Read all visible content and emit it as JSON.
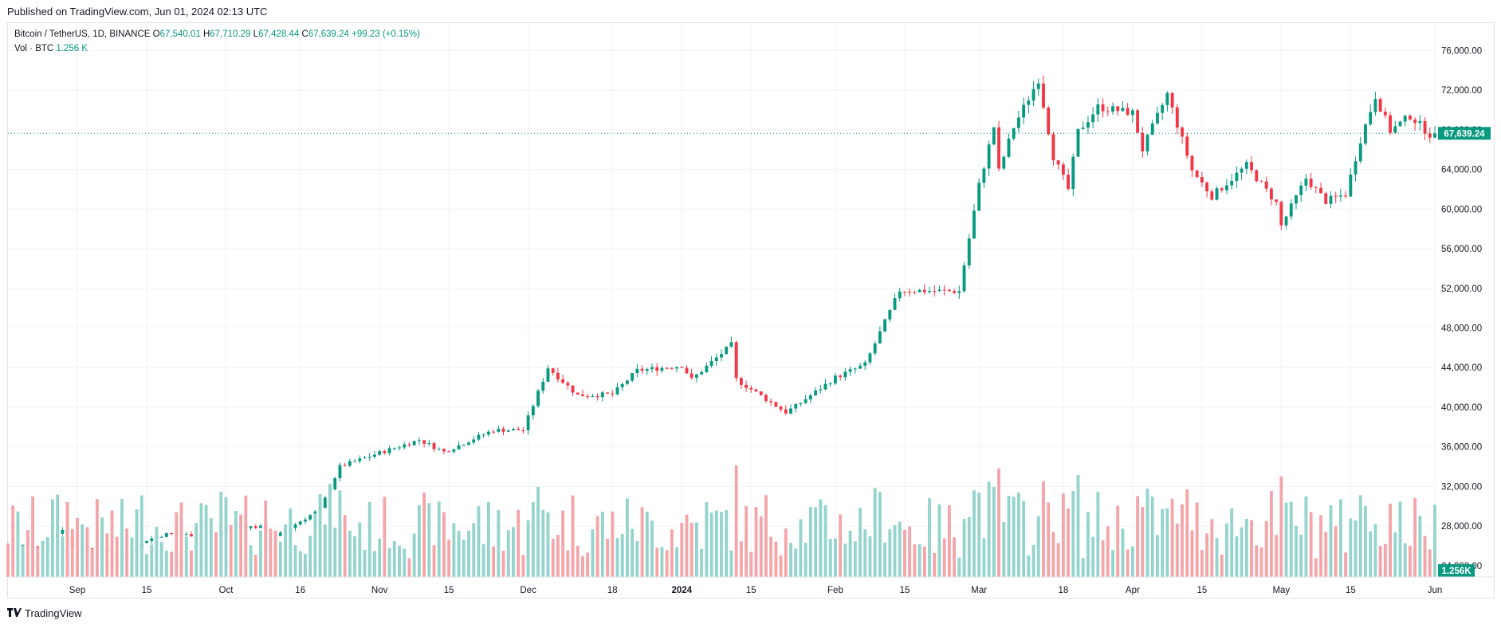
{
  "published": "Published on TradingView.com, Jun 01, 2024 02:13 UTC",
  "legend": {
    "symbol": "Bitcoin / TetherUS, 1D, BINANCE",
    "o_label": "O",
    "o_value": "67,540.01",
    "h_label": "H",
    "h_value": "67,710.29",
    "l_label": "L",
    "l_value": "67,428.44",
    "c_label": "C",
    "c_value": "67,639.24",
    "change": "+99.23 (+0.15%)",
    "vol_label": "Vol · BTC",
    "vol_value": "1.256 K"
  },
  "footer": {
    "brand": "TradingView",
    "logo": "tradingview-logo-icon"
  },
  "colors": {
    "up": "#089981",
    "down": "#f23645",
    "vol_up": "#94d4cd",
    "vol_down": "#f4a5a9",
    "grid": "#f0f3fa",
    "axis_text": "#131722"
  },
  "chart_data": {
    "type": "candlestick",
    "symbol": "Bitcoin / TetherUS",
    "interval": "1D",
    "exchange": "BINANCE",
    "date_range": [
      "2023-08-18",
      "2024-06-01"
    ],
    "ylim": [
      21500,
      78200
    ],
    "y_ticks": [
      76000,
      72000,
      68000,
      64000,
      60000,
      56000,
      52000,
      48000,
      44000,
      40000,
      36000,
      32000,
      28000,
      24000
    ],
    "y_tick_labels": [
      "76,000.00",
      "72,000.00",
      "68,000.00",
      "64,000.00",
      "60,000.00",
      "56,000.00",
      "52,000.00",
      "48,000.00",
      "44,000.00",
      "40,000.00",
      "36,000.00",
      "32,000.00",
      "28,000.00",
      "24,000.00"
    ],
    "x_ticks": [
      {
        "label": "Sep",
        "date": "2023-09-01"
      },
      {
        "label": "15",
        "date": "2023-09-15"
      },
      {
        "label": "Oct",
        "date": "2023-10-01"
      },
      {
        "label": "16",
        "date": "2023-10-16"
      },
      {
        "label": "Nov",
        "date": "2023-11-01"
      },
      {
        "label": "15",
        "date": "2023-11-15"
      },
      {
        "label": "Dec",
        "date": "2023-12-01"
      },
      {
        "label": "18",
        "date": "2023-12-18"
      },
      {
        "label": "2024",
        "date": "2024-01-01"
      },
      {
        "label": "15",
        "date": "2024-01-15"
      },
      {
        "label": "Feb",
        "date": "2024-02-01"
      },
      {
        "label": "15",
        "date": "2024-02-15"
      },
      {
        "label": "Mar",
        "date": "2024-03-01"
      },
      {
        "label": "18",
        "date": "2024-03-18"
      },
      {
        "label": "Apr",
        "date": "2024-04-01"
      },
      {
        "label": "15",
        "date": "2024-04-15"
      },
      {
        "label": "May",
        "date": "2024-05-01"
      },
      {
        "label": "15",
        "date": "2024-05-15"
      },
      {
        "label": "Jun",
        "date": "2024-06-01"
      }
    ],
    "last_price_label": "67,639.24",
    "last_price": 67639.24,
    "last_volume_label": "1.256K",
    "close_anchors": [
      [
        "2023-08-18",
        26100
      ],
      [
        "2023-08-25",
        26000
      ],
      [
        "2023-08-29",
        27700
      ],
      [
        "2023-08-31",
        26000
      ],
      [
        "2023-09-11",
        25200
      ],
      [
        "2023-09-15",
        26600
      ],
      [
        "2023-09-19",
        27200
      ],
      [
        "2023-09-29",
        27000
      ],
      [
        "2023-10-01",
        28000
      ],
      [
        "2023-10-08",
        27900
      ],
      [
        "2023-10-11",
        26900
      ],
      [
        "2023-10-16",
        28500
      ],
      [
        "2023-10-20",
        29700
      ],
      [
        "2023-10-24",
        34000
      ],
      [
        "2023-11-01",
        35400
      ],
      [
        "2023-11-09",
        36700
      ],
      [
        "2023-11-14",
        35500
      ],
      [
        "2023-11-24",
        37700
      ],
      [
        "2023-11-30",
        37700
      ],
      [
        "2023-12-05",
        44000
      ],
      [
        "2023-12-11",
        41200
      ],
      [
        "2023-12-18",
        41300
      ],
      [
        "2023-12-23",
        43700
      ],
      [
        "2024-01-01",
        44200
      ],
      [
        "2024-01-03",
        42800
      ],
      [
        "2024-01-11",
        46300
      ],
      [
        "2024-01-12",
        42800
      ],
      [
        "2024-01-22",
        39500
      ],
      [
        "2024-01-24",
        40100
      ],
      [
        "2024-02-01",
        43000
      ],
      [
        "2024-02-07",
        44300
      ],
      [
        "2024-02-14",
        51800
      ],
      [
        "2024-02-26",
        51700
      ],
      [
        "2024-03-01",
        62400
      ],
      [
        "2024-03-04",
        68300
      ],
      [
        "2024-03-05",
        63800
      ],
      [
        "2024-03-08",
        68300
      ],
      [
        "2024-03-13",
        73100
      ],
      [
        "2024-03-16",
        65300
      ],
      [
        "2024-03-19",
        62000
      ],
      [
        "2024-03-21",
        67800
      ],
      [
        "2024-03-25",
        70300
      ],
      [
        "2024-04-01",
        69700
      ],
      [
        "2024-04-03",
        66000
      ],
      [
        "2024-04-08",
        71600
      ],
      [
        "2024-04-13",
        63900
      ],
      [
        "2024-04-17",
        61300
      ],
      [
        "2024-04-24",
        64400
      ],
      [
        "2024-04-30",
        60600
      ],
      [
        "2024-05-01",
        58300
      ],
      [
        "2024-05-06",
        63100
      ],
      [
        "2024-05-10",
        60800
      ],
      [
        "2024-05-14",
        61500
      ],
      [
        "2024-05-17",
        67000
      ],
      [
        "2024-05-20",
        71400
      ],
      [
        "2024-05-23",
        67900
      ],
      [
        "2024-05-27",
        69400
      ],
      [
        "2024-05-31",
        67540
      ],
      [
        "2024-06-01",
        67639.24
      ]
    ],
    "volume_ylim": [
      0,
      40000
    ]
  }
}
